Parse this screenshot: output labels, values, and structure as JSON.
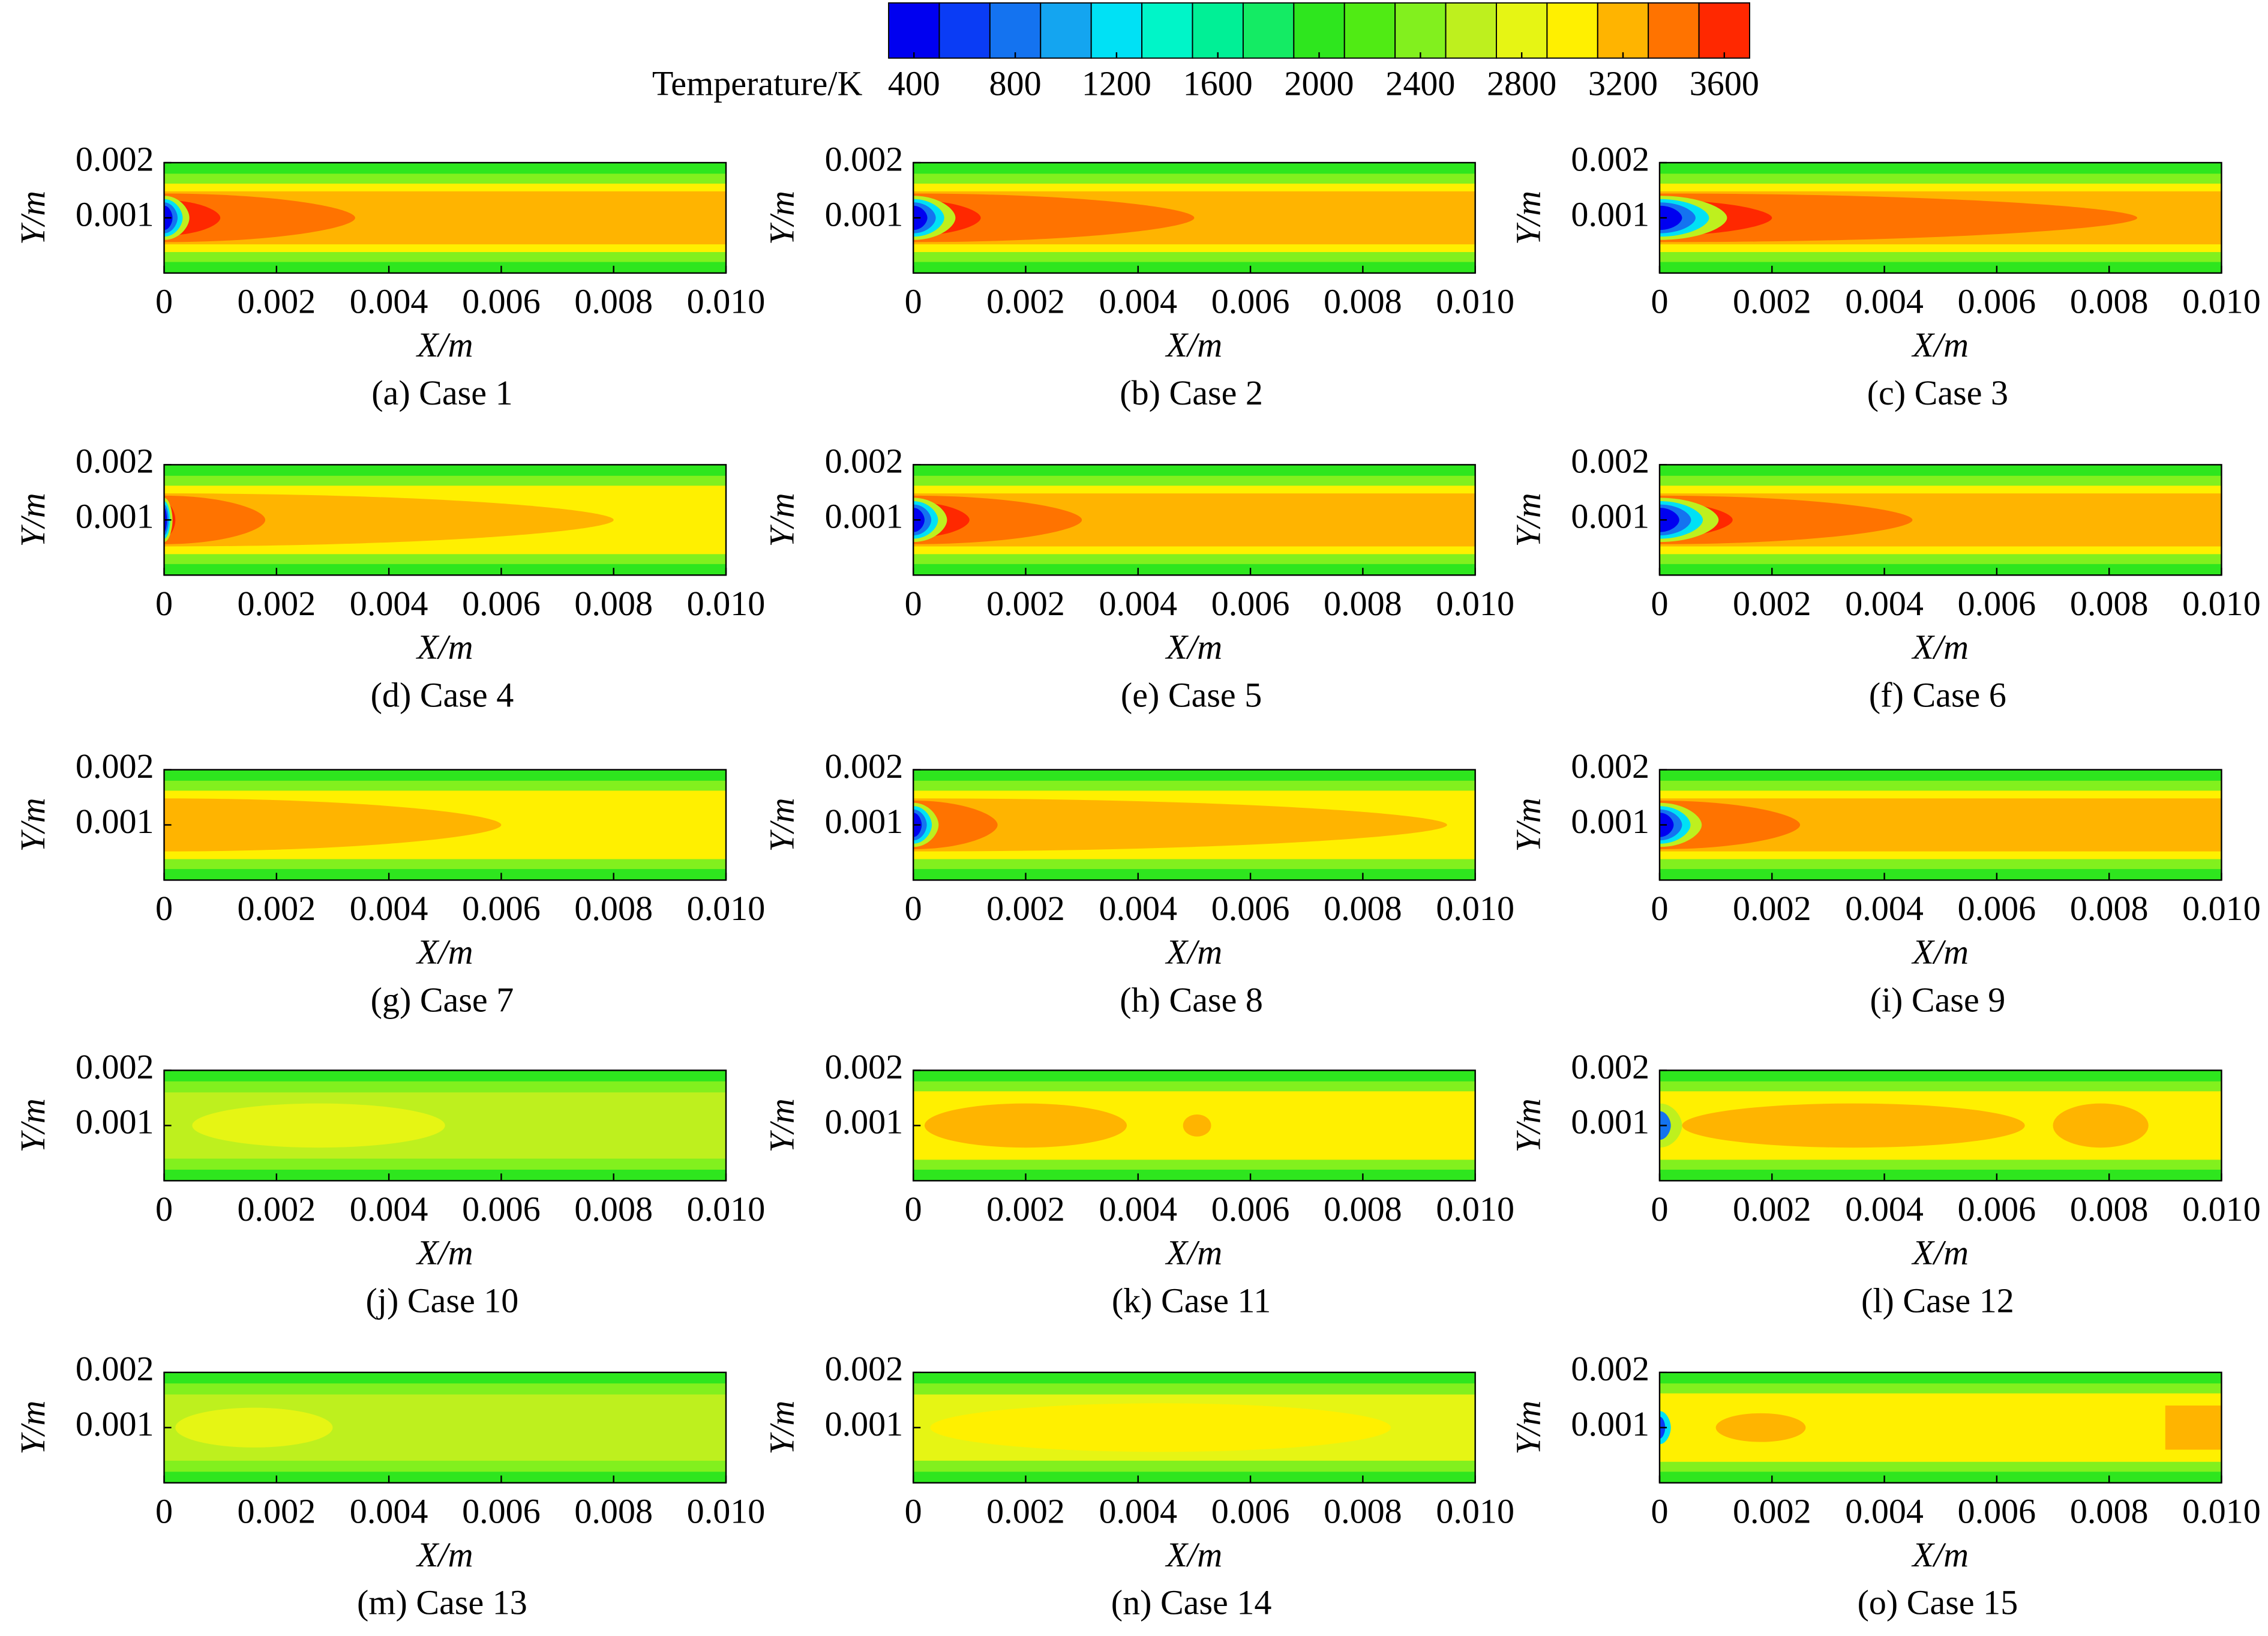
{
  "colorbar": {
    "label": "Temperature/K",
    "lim": [
      300,
      3700
    ],
    "ticks": [
      400,
      800,
      1200,
      1600,
      2000,
      2400,
      2800,
      3200,
      3600
    ],
    "colors": [
      "#0000f0",
      "#0a3cf5",
      "#1473f0",
      "#14a5f0",
      "#00e1f5",
      "#00f5c8",
      "#00f096",
      "#14eb64",
      "#2ee61e",
      "#50eb14",
      "#82f01e",
      "#bef01e",
      "#e6f514",
      "#fff000",
      "#ffb400",
      "#ff7300",
      "#ff2800"
    ]
  },
  "chart_data": [
    {
      "type": "contour",
      "title": "(a) Case 1",
      "xlabel": "X/m",
      "ylabel": "Y/m",
      "xlim": [
        0,
        0.01
      ],
      "ylim": [
        0,
        0.002
      ],
      "xticks": [
        0,
        0.002,
        0.004,
        0.006,
        0.008,
        {
          "value": 0.01,
          "label": "0.010"
        }
      ],
      "yticks": [
        0.001,
        0.002
      ]
    },
    {
      "type": "contour",
      "title": "(b) Case 2",
      "xlabel": "X/m",
      "ylabel": "Y/m",
      "xlim": [
        0,
        0.01
      ],
      "ylim": [
        0,
        0.002
      ],
      "xticks": [
        0,
        0.002,
        0.004,
        0.006,
        0.008,
        {
          "value": 0.01,
          "label": "0.010"
        }
      ],
      "yticks": [
        0.001,
        0.002
      ]
    },
    {
      "type": "contour",
      "title": "(c) Case 3",
      "xlabel": "X/m",
      "ylabel": "Y/m",
      "xlim": [
        0,
        0.01
      ],
      "ylim": [
        0,
        0.002
      ],
      "xticks": [
        0,
        0.002,
        0.004,
        0.006,
        0.008,
        {
          "value": 0.01,
          "label": "0.010"
        }
      ],
      "yticks": [
        0.001,
        0.002
      ]
    },
    {
      "type": "contour",
      "title": "(d) Case 4",
      "xlabel": "X/m",
      "ylabel": "Y/m",
      "xlim": [
        0,
        0.01
      ],
      "ylim": [
        0,
        0.002
      ],
      "xticks": [
        0,
        0.002,
        0.004,
        0.006,
        0.008,
        {
          "value": 0.01,
          "label": "0.010"
        }
      ],
      "yticks": [
        0.001,
        0.002
      ]
    },
    {
      "type": "contour",
      "title": "(e) Case 5",
      "xlabel": "X/m",
      "ylabel": "Y/m",
      "xlim": [
        0,
        0.01
      ],
      "ylim": [
        0,
        0.002
      ],
      "xticks": [
        0,
        0.002,
        0.004,
        0.006,
        0.008,
        {
          "value": 0.01,
          "label": "0.010"
        }
      ],
      "yticks": [
        0.001,
        0.002
      ]
    },
    {
      "type": "contour",
      "title": "(f) Case 6",
      "xlabel": "X/m",
      "ylabel": "Y/m",
      "xlim": [
        0,
        0.01
      ],
      "ylim": [
        0,
        0.002
      ],
      "xticks": [
        0,
        0.002,
        0.004,
        0.006,
        0.008,
        {
          "value": 0.01,
          "label": "0.010"
        }
      ],
      "yticks": [
        0.001,
        0.002
      ]
    },
    {
      "type": "contour",
      "title": "(g) Case 7",
      "xlabel": "X/m",
      "ylabel": "Y/m",
      "xlim": [
        0,
        0.01
      ],
      "ylim": [
        0,
        0.002
      ],
      "xticks": [
        0,
        0.002,
        0.004,
        0.006,
        0.008,
        {
          "value": 0.01,
          "label": "0.010"
        }
      ],
      "yticks": [
        0.001,
        0.002
      ]
    },
    {
      "type": "contour",
      "title": "(h) Case 8",
      "xlabel": "X/m",
      "ylabel": "Y/m",
      "xlim": [
        0,
        0.01
      ],
      "ylim": [
        0,
        0.002
      ],
      "xticks": [
        0,
        0.002,
        0.004,
        0.006,
        0.008,
        {
          "value": 0.01,
          "label": "0.010"
        }
      ],
      "yticks": [
        0.001,
        0.002
      ]
    },
    {
      "type": "contour",
      "title": "(i) Case 9",
      "xlabel": "X/m",
      "ylabel": "Y/m",
      "xlim": [
        0,
        0.01
      ],
      "ylim": [
        0,
        0.002
      ],
      "xticks": [
        0,
        0.002,
        0.004,
        0.006,
        0.008,
        {
          "value": 0.01,
          "label": "0.010"
        }
      ],
      "yticks": [
        0.001,
        0.002
      ]
    },
    {
      "type": "contour",
      "title": "(j) Case 10",
      "xlabel": "X/m",
      "ylabel": "Y/m",
      "xlim": [
        0,
        0.01
      ],
      "ylim": [
        0,
        0.002
      ],
      "xticks": [
        0,
        0.002,
        0.004,
        0.006,
        0.008,
        {
          "value": 0.01,
          "label": "0.010"
        }
      ],
      "yticks": [
        0.001,
        0.002
      ]
    },
    {
      "type": "contour",
      "title": "(k) Case 11",
      "xlabel": "X/m",
      "ylabel": "Y/m",
      "xlim": [
        0,
        0.01
      ],
      "ylim": [
        0,
        0.002
      ],
      "xticks": [
        0,
        0.002,
        0.004,
        0.006,
        0.008,
        {
          "value": 0.01,
          "label": "0.010"
        }
      ],
      "yticks": [
        0.001,
        0.002
      ]
    },
    {
      "type": "contour",
      "title": "(l) Case 12",
      "xlabel": "X/m",
      "ylabel": "Y/m",
      "xlim": [
        0,
        0.01
      ],
      "ylim": [
        0,
        0.002
      ],
      "xticks": [
        0,
        0.002,
        0.004,
        0.006,
        0.008,
        {
          "value": 0.01,
          "label": "0.010"
        }
      ],
      "yticks": [
        0.001,
        0.002
      ]
    },
    {
      "type": "contour",
      "title": "(m) Case 13",
      "xlabel": "X/m",
      "ylabel": "Y/m",
      "xlim": [
        0,
        0.01
      ],
      "ylim": [
        0,
        0.002
      ],
      "xticks": [
        0,
        0.002,
        0.004,
        0.006,
        0.008,
        {
          "value": 0.01,
          "label": "0.010"
        }
      ],
      "yticks": [
        0.001,
        0.002
      ]
    },
    {
      "type": "contour",
      "title": "(n) Case 14",
      "xlabel": "X/m",
      "ylabel": "Y/m",
      "xlim": [
        0,
        0.01
      ],
      "ylim": [
        0,
        0.002
      ],
      "xticks": [
        0,
        0.002,
        0.004,
        0.006,
        0.008,
        {
          "value": 0.01,
          "label": "0.010"
        }
      ],
      "yticks": [
        0.001,
        0.002
      ]
    },
    {
      "type": "contour",
      "title": "(o) Case 15",
      "xlabel": "X/m",
      "ylabel": "Y/m",
      "xlim": [
        0,
        0.01
      ],
      "ylim": [
        0,
        0.002
      ],
      "xticks": [
        0,
        0.002,
        0.004,
        0.006,
        0.008,
        {
          "value": 0.01,
          "label": "0.010"
        }
      ],
      "yticks": [
        0.001,
        0.002
      ]
    }
  ]
}
